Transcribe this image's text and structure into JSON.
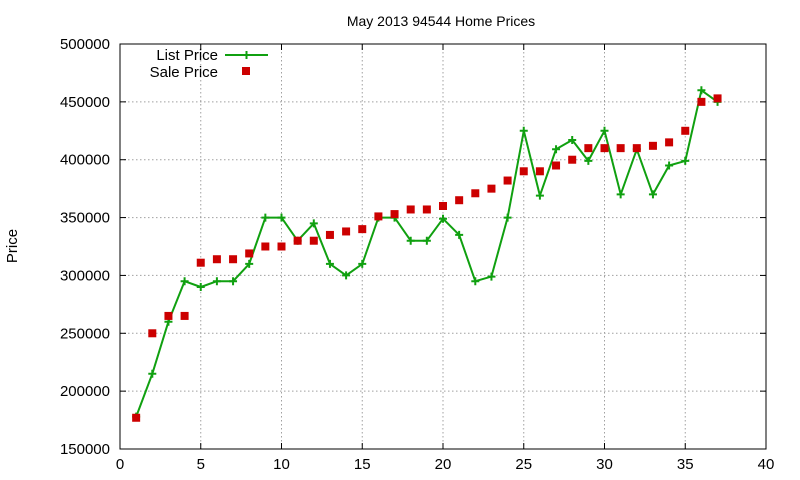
{
  "chart_data": {
    "type": "line",
    "title": "May 2013 94544 Home Prices",
    "xlabel": "",
    "ylabel": "Price",
    "xlim": [
      0,
      40
    ],
    "ylim": [
      150000,
      500000
    ],
    "xticks": [
      0,
      5,
      10,
      15,
      20,
      25,
      30,
      35,
      40
    ],
    "yticks": [
      150000,
      200000,
      250000,
      300000,
      350000,
      400000,
      450000,
      500000
    ],
    "grid": true,
    "legend_position": "top-left",
    "x": [
      1,
      2,
      3,
      4,
      5,
      6,
      7,
      8,
      9,
      10,
      11,
      12,
      13,
      14,
      15,
      16,
      17,
      18,
      19,
      20,
      21,
      22,
      23,
      24,
      25,
      26,
      27,
      28,
      29,
      30,
      31,
      32,
      33,
      34,
      35,
      36,
      37
    ],
    "series": [
      {
        "name": "List Price",
        "style": "line-with-plus-markers",
        "color": "#10a010",
        "values": [
          178000,
          215000,
          260000,
          295000,
          290000,
          295000,
          295000,
          310000,
          350000,
          350000,
          330000,
          345000,
          310000,
          300000,
          310000,
          350000,
          350000,
          330000,
          330000,
          349000,
          335000,
          295000,
          299000,
          350000,
          425000,
          369000,
          409000,
          417000,
          399000,
          425000,
          370000,
          409000,
          370000,
          395000,
          399000,
          460000,
          450000
        ]
      },
      {
        "name": "Sale Price",
        "style": "square-markers",
        "color": "#cc0000",
        "values": [
          177000,
          250000,
          265000,
          265000,
          311000,
          314000,
          314000,
          319000,
          325000,
          325000,
          330000,
          330000,
          335000,
          338000,
          340000,
          351000,
          353000,
          357000,
          357000,
          360000,
          365000,
          371000,
          375000,
          382000,
          390000,
          390000,
          395000,
          400000,
          410000,
          410000,
          410000,
          410000,
          412000,
          415000,
          425000,
          450000,
          453000
        ]
      }
    ]
  }
}
